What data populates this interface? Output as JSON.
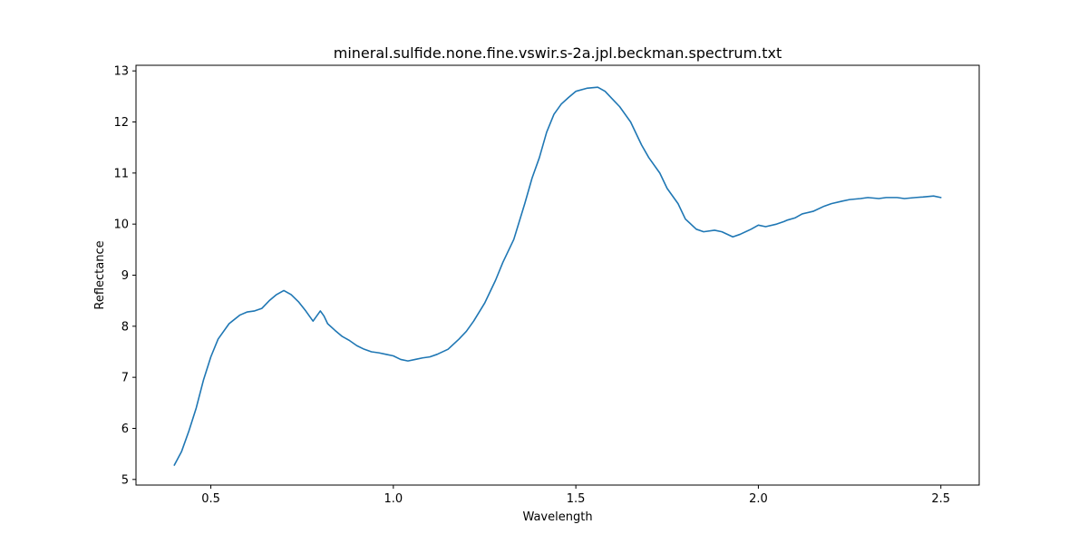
{
  "chart_data": {
    "type": "line",
    "title": "mineral.sulfide.none.fine.vswir.s-2a.jpl.beckman.spectrum.txt",
    "xlabel": "Wavelength",
    "ylabel": "Reflectance",
    "xlim": [
      0.295,
      2.605
    ],
    "ylim": [
      4.89,
      13.11
    ],
    "xticks": [
      0.5,
      1.0,
      1.5,
      2.0,
      2.5
    ],
    "xtick_labels": [
      "0.5",
      "1.0",
      "1.5",
      "2.0",
      "2.5"
    ],
    "yticks": [
      5,
      6,
      7,
      8,
      9,
      10,
      11,
      12,
      13
    ],
    "ytick_labels": [
      "5",
      "6",
      "7",
      "8",
      "9",
      "10",
      "11",
      "12",
      "13"
    ],
    "grid": false,
    "legend": "none",
    "colors": {
      "line": "#1f77b4"
    },
    "series": [
      {
        "x": [
          0.4,
          0.42,
          0.44,
          0.46,
          0.48,
          0.5,
          0.52,
          0.55,
          0.58,
          0.6,
          0.62,
          0.64,
          0.66,
          0.68,
          0.7,
          0.72,
          0.74,
          0.76,
          0.78,
          0.8,
          0.81,
          0.82,
          0.84,
          0.86,
          0.88,
          0.9,
          0.92,
          0.94,
          0.96,
          0.98,
          1.0,
          1.02,
          1.04,
          1.06,
          1.08,
          1.1,
          1.12,
          1.15,
          1.18,
          1.2,
          1.22,
          1.25,
          1.28,
          1.3,
          1.33,
          1.36,
          1.38,
          1.4,
          1.42,
          1.44,
          1.46,
          1.48,
          1.5,
          1.53,
          1.56,
          1.58,
          1.6,
          1.62,
          1.65,
          1.68,
          1.7,
          1.73,
          1.75,
          1.78,
          1.8,
          1.83,
          1.85,
          1.88,
          1.9,
          1.93,
          1.95,
          1.98,
          2.0,
          2.02,
          2.05,
          2.07,
          2.08,
          2.1,
          2.12,
          2.15,
          2.18,
          2.2,
          2.23,
          2.25,
          2.28,
          2.3,
          2.33,
          2.35,
          2.38,
          2.4,
          2.43,
          2.45,
          2.48,
          2.5
        ],
        "y": [
          5.28,
          5.55,
          5.95,
          6.4,
          6.95,
          7.4,
          7.75,
          8.05,
          8.22,
          8.28,
          8.3,
          8.35,
          8.5,
          8.62,
          8.7,
          8.62,
          8.48,
          8.3,
          8.1,
          8.3,
          8.2,
          8.05,
          7.92,
          7.8,
          7.72,
          7.62,
          7.55,
          7.5,
          7.48,
          7.45,
          7.42,
          7.35,
          7.32,
          7.35,
          7.38,
          7.4,
          7.45,
          7.55,
          7.75,
          7.9,
          8.1,
          8.45,
          8.9,
          9.25,
          9.7,
          10.4,
          10.9,
          11.3,
          11.8,
          12.15,
          12.35,
          12.48,
          12.6,
          12.66,
          12.68,
          12.6,
          12.45,
          12.3,
          12.0,
          11.55,
          11.3,
          11.0,
          10.7,
          10.4,
          10.1,
          9.9,
          9.85,
          9.88,
          9.85,
          9.75,
          9.8,
          9.9,
          9.98,
          9.95,
          10.0,
          10.05,
          10.08,
          10.12,
          10.2,
          10.25,
          10.35,
          10.4,
          10.45,
          10.48,
          10.5,
          10.52,
          10.5,
          10.52,
          10.52,
          10.5,
          10.52,
          10.53,
          10.55,
          10.52
        ]
      }
    ]
  }
}
